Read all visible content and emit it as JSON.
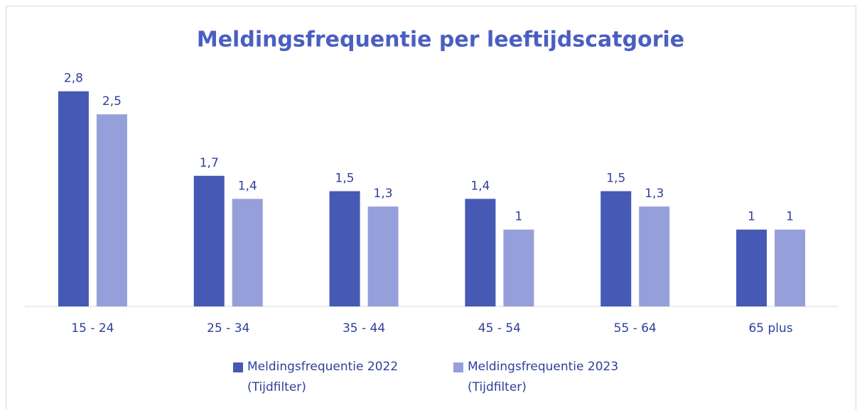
{
  "chart_data": {
    "type": "bar",
    "title": "Meldingsfrequentie per leeftijdscatgorie",
    "categories": [
      "15 - 24",
      "25 - 34",
      "35 - 44",
      "45 - 54",
      "55 - 64",
      "65 plus"
    ],
    "series": [
      {
        "name": "Meldingsfrequentie 2022 (Tijdfilter)",
        "color": "#4559b5",
        "values": [
          2.8,
          1.7,
          1.5,
          1.4,
          1.5,
          1
        ],
        "value_labels": [
          "2,8",
          "1,7",
          "1,5",
          "1,4",
          "1,5",
          "1"
        ]
      },
      {
        "name": "Meldingsfrequentie 2023 (Tijdfilter)",
        "color": "#95a0da",
        "values": [
          2.5,
          1.4,
          1.3,
          1,
          1.3,
          1
        ],
        "value_labels": [
          "2,5",
          "1,4",
          "1,3",
          "1",
          "1,3",
          "1"
        ]
      }
    ],
    "ylim": [
      0,
      3
    ],
    "legend": "bottom"
  }
}
